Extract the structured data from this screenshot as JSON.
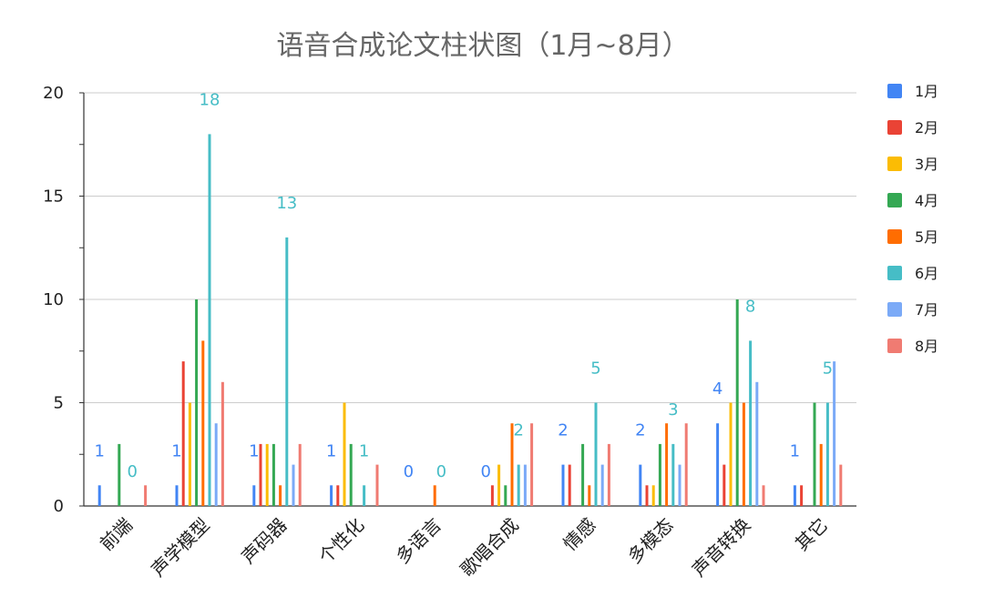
{
  "chart_data": {
    "type": "bar",
    "title": "语音合成论文柱状图（1月~8月）",
    "xlabel": "",
    "ylabel": "",
    "ylim": [
      0,
      20
    ],
    "yticks": [
      0,
      5,
      10,
      15,
      20
    ],
    "grid": true,
    "legend_position": "right",
    "categories": [
      "前端",
      "声学模型",
      "声码器",
      "个性化",
      "多语言",
      "歌唱合成",
      "情感",
      "多模态",
      "声音转换",
      "其它"
    ],
    "series": [
      {
        "name": "1月",
        "color": "#4285f4",
        "values": [
          1,
          1,
          1,
          1,
          0,
          0,
          2,
          2,
          4,
          1
        ]
      },
      {
        "name": "2月",
        "color": "#ea4335",
        "values": [
          0,
          7,
          3,
          1,
          0,
          1,
          2,
          1,
          2,
          1
        ]
      },
      {
        "name": "3月",
        "color": "#fbbc04",
        "values": [
          0,
          5,
          3,
          5,
          0,
          2,
          0,
          1,
          5,
          0
        ]
      },
      {
        "name": "4月",
        "color": "#34a853",
        "values": [
          3,
          10,
          3,
          3,
          0,
          1,
          3,
          3,
          10,
          5
        ]
      },
      {
        "name": "5月",
        "color": "#ff6d01",
        "values": [
          0,
          8,
          1,
          0,
          1,
          4,
          1,
          4,
          5,
          3
        ]
      },
      {
        "name": "6月",
        "color": "#46bdc6",
        "values": [
          0,
          18,
          13,
          1,
          0,
          2,
          5,
          3,
          8,
          5
        ]
      },
      {
        "name": "7月",
        "color": "#7baaf7",
        "values": [
          0,
          4,
          2,
          0,
          0,
          2,
          2,
          2,
          6,
          7
        ]
      },
      {
        "name": "8月",
        "color": "#f07b72",
        "values": [
          1,
          6,
          3,
          2,
          0,
          4,
          3,
          4,
          1,
          2
        ]
      }
    ],
    "data_labels": [
      {
        "category_index": 0,
        "series_index": 0,
        "text": "1"
      },
      {
        "category_index": 0,
        "series_index": 5,
        "text": "0"
      },
      {
        "category_index": 1,
        "series_index": 0,
        "text": "1"
      },
      {
        "category_index": 1,
        "series_index": 5,
        "text": "18"
      },
      {
        "category_index": 2,
        "series_index": 0,
        "text": "1"
      },
      {
        "category_index": 2,
        "series_index": 5,
        "text": "13"
      },
      {
        "category_index": 3,
        "series_index": 0,
        "text": "1"
      },
      {
        "category_index": 3,
        "series_index": 5,
        "text": "1"
      },
      {
        "category_index": 4,
        "series_index": 0,
        "text": "0"
      },
      {
        "category_index": 4,
        "series_index": 5,
        "text": "0"
      },
      {
        "category_index": 5,
        "series_index": 0,
        "text": "0"
      },
      {
        "category_index": 5,
        "series_index": 5,
        "text": "2"
      },
      {
        "category_index": 6,
        "series_index": 0,
        "text": "2"
      },
      {
        "category_index": 6,
        "series_index": 5,
        "text": "5"
      },
      {
        "category_index": 7,
        "series_index": 0,
        "text": "2"
      },
      {
        "category_index": 7,
        "series_index": 5,
        "text": "3"
      },
      {
        "category_index": 8,
        "series_index": 0,
        "text": "4"
      },
      {
        "category_index": 8,
        "series_index": 5,
        "text": "8"
      },
      {
        "category_index": 9,
        "series_index": 0,
        "text": "1"
      },
      {
        "category_index": 9,
        "series_index": 5,
        "text": "5"
      }
    ]
  }
}
